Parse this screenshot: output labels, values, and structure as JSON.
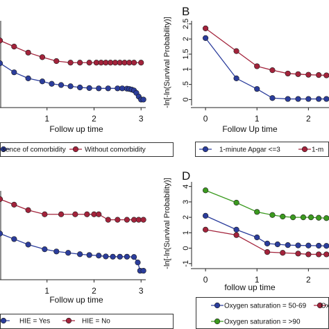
{
  "panels": {
    "A": {
      "label": ""
    },
    "B": {
      "label": "B"
    },
    "C": {
      "label": ""
    },
    "D": {
      "label": "D"
    }
  },
  "chart_data": [
    {
      "panel": "A",
      "type": "line",
      "xlabel": "Follow up time",
      "ylabel": "",
      "xlim": [
        0,
        3.1
      ],
      "ylim": [
        -0.15,
        2.6
      ],
      "xticks": [
        "1",
        "2",
        "3"
      ],
      "yticks": [],
      "legend": {
        "position": "bottom",
        "entries": [
          "sence of comorbidity",
          "Without comorbidity"
        ]
      },
      "series": [
        {
          "name": "sence of comorbidity",
          "color": "#2b3d9c",
          "points": [
            [
              0,
              1.2
            ],
            [
              0.3,
              0.9
            ],
            [
              0.6,
              0.7
            ],
            [
              0.9,
              0.6
            ],
            [
              1.1,
              0.52
            ],
            [
              1.3,
              0.48
            ],
            [
              1.5,
              0.44
            ],
            [
              1.7,
              0.4
            ],
            [
              1.9,
              0.38
            ],
            [
              2.1,
              0.37
            ],
            [
              2.3,
              0.37
            ],
            [
              2.5,
              0.37
            ],
            [
              2.6,
              0.37
            ],
            [
              2.7,
              0.36
            ],
            [
              2.75,
              0.35
            ],
            [
              2.8,
              0.33
            ],
            [
              2.85,
              0.3
            ],
            [
              2.9,
              0.22
            ],
            [
              2.95,
              0.1
            ],
            [
              3.0,
              0.0
            ],
            [
              3.05,
              0.0
            ]
          ]
        },
        {
          "name": "Without comorbidity",
          "color": "#a3233b",
          "points": [
            [
              0,
              1.95
            ],
            [
              0.3,
              1.75
            ],
            [
              0.6,
              1.55
            ],
            [
              0.9,
              1.4
            ],
            [
              1.2,
              1.27
            ],
            [
              1.5,
              1.22
            ],
            [
              1.7,
              1.22
            ],
            [
              1.9,
              1.22
            ],
            [
              2.05,
              1.22
            ],
            [
              2.15,
              1.22
            ],
            [
              2.25,
              1.22
            ],
            [
              2.35,
              1.22
            ],
            [
              2.45,
              1.22
            ],
            [
              2.55,
              1.22
            ],
            [
              2.65,
              1.22
            ],
            [
              2.75,
              1.22
            ],
            [
              2.85,
              1.22
            ],
            [
              3.0,
              1.22
            ]
          ]
        }
      ]
    },
    {
      "panel": "B",
      "type": "line",
      "xlabel": "Follow Up time",
      "ylabel": "-ln[-ln(Survival Probability)]",
      "xlim": [
        -0.15,
        2.4
      ],
      "ylim": [
        -0.15,
        2.6
      ],
      "xticks": [
        "0",
        "1",
        "2"
      ],
      "yticks": [
        "0",
        ".5",
        "1",
        "1.5",
        "2",
        "2.5"
      ],
      "legend": {
        "position": "bottom",
        "entries": [
          "1-minute Apgar <=3",
          "1-m"
        ]
      },
      "series": [
        {
          "name": "1-minute Apgar <=3",
          "color": "#2b3d9c",
          "points": [
            [
              0,
              2.03
            ],
            [
              0.6,
              0.7
            ],
            [
              1.0,
              0.35
            ],
            [
              1.3,
              0.05
            ],
            [
              1.6,
              0.02
            ],
            [
              1.8,
              0.02
            ],
            [
              2.0,
              0.02
            ],
            [
              2.2,
              0.02
            ],
            [
              2.35,
              0.02
            ]
          ]
        },
        {
          "name": "1-m",
          "color": "#a3233b",
          "points": [
            [
              0,
              2.35
            ],
            [
              0.6,
              1.6
            ],
            [
              1.0,
              1.1
            ],
            [
              1.3,
              0.97
            ],
            [
              1.6,
              0.86
            ],
            [
              1.8,
              0.84
            ],
            [
              2.0,
              0.82
            ],
            [
              2.2,
              0.81
            ],
            [
              2.35,
              0.8
            ]
          ]
        }
      ]
    },
    {
      "panel": "C",
      "type": "line",
      "xlabel": "Follow up time",
      "ylabel": "",
      "xlim": [
        0,
        3.1
      ],
      "ylim": [
        -0.5,
        2.6
      ],
      "xticks": [
        "1",
        "2",
        "3"
      ],
      "yticks": [],
      "legend": {
        "position": "bottom",
        "entries": [
          "HIE = Yes",
          "HIE = No"
        ]
      },
      "series": [
        {
          "name": "HIE = Yes",
          "color": "#2b3d9c",
          "points": [
            [
              0,
              1.05
            ],
            [
              0.3,
              0.85
            ],
            [
              0.6,
              0.65
            ],
            [
              0.95,
              0.48
            ],
            [
              1.2,
              0.4
            ],
            [
              1.45,
              0.35
            ],
            [
              1.7,
              0.3
            ],
            [
              1.9,
              0.27
            ],
            [
              2.1,
              0.25
            ],
            [
              2.25,
              0.22
            ],
            [
              2.4,
              0.21
            ],
            [
              2.55,
              0.21
            ],
            [
              2.7,
              0.21
            ],
            [
              2.85,
              0.2
            ],
            [
              2.93,
              0.0
            ],
            [
              2.98,
              -0.3
            ],
            [
              3.05,
              -0.3
            ]
          ]
        },
        {
          "name": "HIE = No",
          "color": "#a3233b",
          "points": [
            [
              0,
              2.3
            ],
            [
              0.3,
              2.1
            ],
            [
              0.6,
              1.9
            ],
            [
              0.95,
              1.75
            ],
            [
              1.3,
              1.75
            ],
            [
              1.6,
              1.75
            ],
            [
              1.85,
              1.75
            ],
            [
              2.0,
              1.75
            ],
            [
              2.1,
              1.75
            ],
            [
              2.3,
              1.55
            ],
            [
              2.5,
              1.55
            ],
            [
              2.7,
              1.55
            ],
            [
              2.85,
              1.55
            ],
            [
              2.95,
              1.55
            ],
            [
              3.05,
              1.55
            ]
          ]
        }
      ]
    },
    {
      "panel": "D",
      "type": "line",
      "xlabel": "follow up time",
      "ylabel": "-ln[-ln(Survival Probability)]",
      "xlim": [
        -0.15,
        2.4
      ],
      "ylim": [
        -1.1,
        4.3
      ],
      "xticks": [
        "0",
        "1",
        "2"
      ],
      "yticks": [
        "-1",
        "0",
        "1",
        "2",
        "3",
        "4"
      ],
      "legend": {
        "position": "bottom",
        "entries": [
          "Oxygen saturation = 50-69",
          "Oxy",
          "Oxygen saturation = >90"
        ]
      },
      "series": [
        {
          "name": "Oxygen saturation = 50-69",
          "color": "#2b3d9c",
          "points": [
            [
              0,
              2.1
            ],
            [
              0.6,
              1.2
            ],
            [
              1.0,
              0.7
            ],
            [
              1.2,
              0.3
            ],
            [
              1.4,
              0.25
            ],
            [
              1.6,
              0.2
            ],
            [
              1.8,
              0.18
            ],
            [
              2.0,
              0.17
            ],
            [
              2.2,
              0.16
            ],
            [
              2.35,
              0.15
            ]
          ]
        },
        {
          "name": "Oxy",
          "color": "#a3233b",
          "points": [
            [
              0,
              1.2
            ],
            [
              0.6,
              0.85
            ],
            [
              1.2,
              -0.25
            ],
            [
              1.5,
              -0.3
            ],
            [
              1.8,
              -0.35
            ],
            [
              2.0,
              -0.4
            ],
            [
              2.2,
              -0.4
            ],
            [
              2.35,
              -0.4
            ]
          ]
        },
        {
          "name": "Oxygen saturation = >90",
          "color": "#3b9a1f",
          "points": [
            [
              0,
              3.75
            ],
            [
              0.6,
              2.95
            ],
            [
              1.0,
              2.35
            ],
            [
              1.3,
              2.15
            ],
            [
              1.5,
              2.05
            ],
            [
              1.7,
              2.0
            ],
            [
              1.9,
              2.0
            ],
            [
              2.05,
              2.0
            ],
            [
              2.2,
              1.97
            ],
            [
              2.35,
              1.95
            ]
          ]
        }
      ]
    }
  ]
}
